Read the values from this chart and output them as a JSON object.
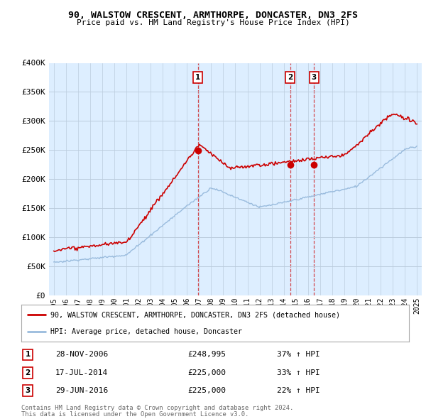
{
  "title": "90, WALSTOW CRESCENT, ARMTHORPE, DONCASTER, DN3 2FS",
  "subtitle": "Price paid vs. HM Land Registry's House Price Index (HPI)",
  "legend_line1": "90, WALSTOW CRESCENT, ARMTHORPE, DONCASTER, DN3 2FS (detached house)",
  "legend_line2": "HPI: Average price, detached house, Doncaster",
  "footer_line1": "Contains HM Land Registry data © Crown copyright and database right 2024.",
  "footer_line2": "This data is licensed under the Open Government Licence v3.0.",
  "sales": [
    {
      "num": 1,
      "date": "28-NOV-2006",
      "price": "£248,995",
      "change": "37% ↑ HPI",
      "date_num": 2006.91
    },
    {
      "num": 2,
      "date": "17-JUL-2014",
      "price": "£225,000",
      "change": "33% ↑ HPI",
      "date_num": 2014.54
    },
    {
      "num": 3,
      "date": "29-JUN-2016",
      "price": "£225,000",
      "change": "22% ↑ HPI",
      "date_num": 2016.49
    }
  ],
  "sale_values": [
    248995,
    225000,
    225000
  ],
  "ylim": [
    0,
    400000
  ],
  "yticks": [
    0,
    50000,
    100000,
    150000,
    200000,
    250000,
    300000,
    350000,
    400000
  ],
  "ytick_labels": [
    "£0",
    "£50K",
    "£100K",
    "£150K",
    "£200K",
    "£250K",
    "£300K",
    "£350K",
    "£400K"
  ],
  "red_color": "#cc0000",
  "blue_color": "#99bbdd",
  "chart_bg": "#ddeeff",
  "background_color": "#ffffff",
  "grid_color": "#bbccdd"
}
